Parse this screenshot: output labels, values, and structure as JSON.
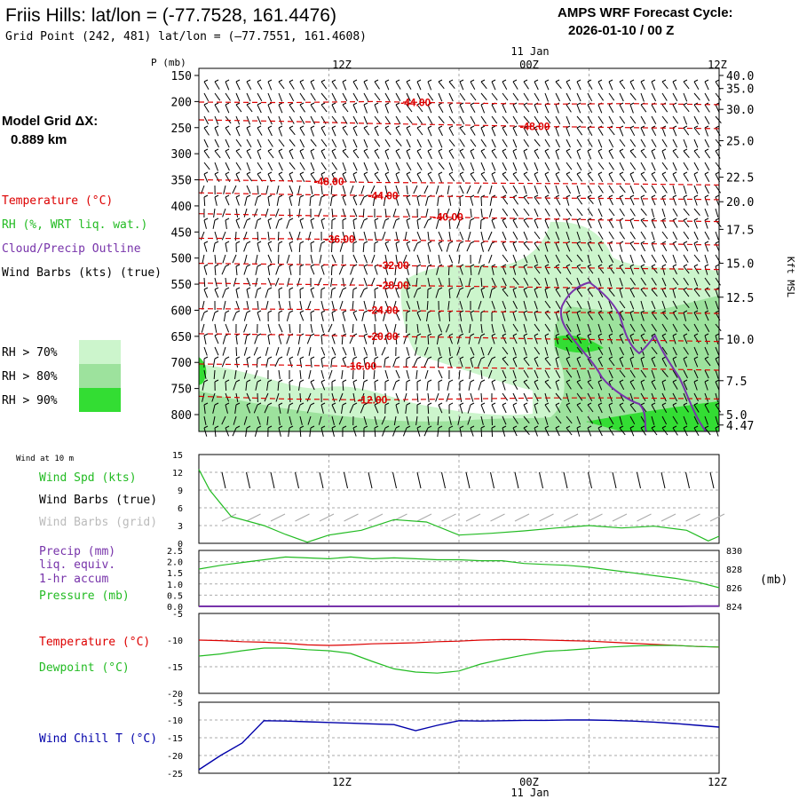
{
  "header": {
    "title": "Friis Hills:  lat/lon = (-77.7528, 161.4476)",
    "subtitle": "Grid Point (242, 481) lat/lon = (–77.7551, 161.4608)",
    "cycle_label": "AMPS WRF Forecast Cycle:",
    "cycle_value": "2026-01-10 / 00  Z",
    "grid_label": "Model Grid ΔX:",
    "grid_value": "0.889 km"
  },
  "time_axis": {
    "top_labels": [
      "12Z",
      "00Z",
      "12Z"
    ],
    "date_label": "11 Jan",
    "bottom_labels": [
      "12Z",
      "00Z",
      "12Z"
    ],
    "bottom_date_label": "11 Jan"
  },
  "colors": {
    "temperature": "#dd0000",
    "rh": "#22bb22",
    "cloud": "#7733aa",
    "wind_chill": "#0000aa",
    "rh70": "#ccf5cc",
    "rh80": "#9de29d",
    "rh90": "#33dd33"
  },
  "legend_top": {
    "temperature": "Temperature (°C)",
    "rh": "RH (%, WRT liq. wat.)",
    "cloud": "Cloud/Precip Outline",
    "wind": "Wind Barbs (kts) (true)",
    "rh70": "RH > 70%",
    "rh80": "RH > 80%",
    "rh90": "RH > 90%"
  },
  "legend_wind": {
    "title": "Wind at 10 m",
    "speed": "Wind Spd (kts)",
    "barbs_true": "Wind Barbs (true)",
    "barbs_grid": "Wind Barbs (grid)"
  },
  "legend_precip": {
    "line1": "Precip (mm)",
    "line2": "liq. equiv.",
    "line3": "1-hr accum",
    "pressure": "Pressure (mb)",
    "unit": "(mb)"
  },
  "legend_temp": {
    "temperature": "Temperature (°C)",
    "dewpoint": "Dewpoint (°C)"
  },
  "legend_chill": {
    "label": "Wind Chill T (°C)"
  },
  "chart_data": [
    {
      "type": "area",
      "name": "cross-section",
      "ylabel": "P (mb)",
      "y2label": "Kft MSL",
      "pressure_ticks": [
        150,
        200,
        250,
        300,
        350,
        400,
        450,
        500,
        550,
        600,
        650,
        700,
        750,
        800
      ],
      "height_labels": [
        {
          "p": 150,
          "label": "40.0"
        },
        {
          "p": 175,
          "label": "35.0"
        },
        {
          "p": 215,
          "label": "30.0"
        },
        {
          "p": 275,
          "label": "25.0"
        },
        {
          "p": 345,
          "label": "22.5"
        },
        {
          "p": 392,
          "label": "20.0"
        },
        {
          "p": 445,
          "label": "17.5"
        },
        {
          "p": 510,
          "label": "15.0"
        },
        {
          "p": 575,
          "label": "12.5"
        },
        {
          "p": 655,
          "label": "10.0"
        },
        {
          "p": 735,
          "label": "7.5"
        },
        {
          "p": 800,
          "label": "5.0"
        },
        {
          "p": 820,
          "label": "4.47"
        }
      ],
      "time_hours": [
        0,
        48
      ],
      "isotherms": [
        {
          "label": "-44.00",
          "p": [
            201,
            202,
            200,
            203,
            205,
            204,
            206
          ],
          "label_t": 20
        },
        {
          "label": "-48.00",
          "p": [
            235,
            238,
            242,
            245,
            248,
            250,
            252
          ],
          "label_t": 31
        },
        {
          "label": "-48.00",
          "p": [
            350,
            352,
            355,
            356,
            357,
            358,
            360
          ],
          "label_t": 12
        },
        {
          "label": "-44.00",
          "p": [
            375,
            378,
            380,
            382,
            385,
            386,
            388
          ],
          "label_t": 17
        },
        {
          "label": "-40.00",
          "p": [
            415,
            418,
            420,
            422,
            425,
            428,
            430
          ],
          "label_t": 23
        },
        {
          "label": "-36.00",
          "p": [
            462,
            463,
            465,
            467,
            470,
            472,
            475
          ],
          "label_t": 13
        },
        {
          "label": "-32.00",
          "p": [
            510,
            512,
            514,
            516,
            518,
            520,
            522
          ],
          "label_t": 18
        },
        {
          "label": "-28.00",
          "p": [
            548,
            550,
            552,
            554,
            556,
            558,
            560
          ],
          "label_t": 18
        },
        {
          "label": "-24.00",
          "p": [
            597,
            598,
            600,
            602,
            604,
            605,
            606
          ],
          "label_t": 17
        },
        {
          "label": "-20.00",
          "p": [
            645,
            647,
            650,
            652,
            655,
            657,
            660
          ],
          "label_t": 17
        },
        {
          "label": "-16.00",
          "p": [
            703,
            705,
            708,
            710,
            712,
            712,
            715
          ],
          "label_t": 15
        },
        {
          "label": "-12.00",
          "p": [
            765,
            770,
            772,
            770,
            768,
            768,
            770
          ],
          "label_t": 16
        }
      ],
      "rh_regions": [
        "RH > 70%",
        "RH > 80%",
        "RH > 90%"
      ]
    },
    {
      "type": "line",
      "name": "wind-10m",
      "ylim": [
        0,
        15
      ],
      "yticks": [
        0,
        3,
        6,
        9,
        12,
        15
      ],
      "x": [
        0,
        1,
        3,
        6,
        8,
        10,
        12,
        15,
        18,
        21,
        24,
        27,
        30,
        33,
        36,
        39,
        42,
        45,
        47,
        48
      ],
      "series": [
        {
          "name": "Wind Spd (kts)",
          "values": [
            12.5,
            9,
            4.5,
            3,
            1.5,
            0.2,
            1.4,
            2.2,
            4,
            3.6,
            1.4,
            1.7,
            2.1,
            2.6,
            3,
            2.6,
            2.9,
            2.2,
            0.4,
            1.2
          ]
        }
      ]
    },
    {
      "type": "line",
      "name": "precip-pressure",
      "ylim_precip": [
        0.0,
        2.5
      ],
      "yticks_precip": [
        "0.0",
        "0.5",
        "1.0",
        "1.5",
        "2.0",
        "2.5"
      ],
      "ylim_pressure": [
        824,
        830
      ],
      "yticks_pressure": [
        824,
        826,
        828,
        830
      ],
      "x": [
        0,
        2,
        4,
        6,
        8,
        10,
        12,
        14,
        16,
        18,
        20,
        22,
        24,
        26,
        28,
        30,
        32,
        34,
        36,
        38,
        40,
        42,
        44,
        46,
        48
      ],
      "series": [
        {
          "name": "Pressure (mb)",
          "values": [
            828.0,
            828.4,
            828.7,
            829.0,
            829.3,
            829.2,
            829.1,
            829.3,
            829.1,
            829.2,
            829.1,
            829.0,
            829.0,
            828.9,
            828.9,
            828.6,
            828.5,
            828.4,
            828.2,
            827.9,
            827.6,
            827.3,
            827.0,
            826.6,
            826.0
          ]
        },
        {
          "name": "Precip (mm)",
          "values": [
            0,
            0,
            0,
            0,
            0,
            0,
            0,
            0,
            0,
            0,
            0,
            0,
            0,
            0,
            0,
            0,
            0,
            0,
            0,
            0,
            0,
            0,
            0,
            0.01,
            0.01
          ]
        }
      ]
    },
    {
      "type": "line",
      "name": "temperature-dewpoint",
      "ylim": [
        -20,
        -5
      ],
      "yticks": [
        -20,
        -15,
        -10,
        -5
      ],
      "x": [
        0,
        2,
        4,
        6,
        8,
        10,
        12,
        14,
        16,
        18,
        20,
        22,
        24,
        26,
        28,
        30,
        32,
        34,
        36,
        38,
        40,
        42,
        44,
        46,
        48
      ],
      "series": [
        {
          "name": "Temperature (°C)",
          "values": [
            -10.0,
            -10.1,
            -10.3,
            -10.4,
            -10.6,
            -10.9,
            -11.0,
            -10.9,
            -10.7,
            -10.6,
            -10.5,
            -10.3,
            -10.2,
            -10.0,
            -9.9,
            -9.9,
            -10.0,
            -10.1,
            -10.2,
            -10.4,
            -10.6,
            -10.8,
            -11.0,
            -11.2,
            -11.3
          ]
        },
        {
          "name": "Dewpoint (°C)",
          "values": [
            -13.0,
            -12.6,
            -12.0,
            -11.5,
            -11.5,
            -11.8,
            -12.0,
            -12.5,
            -14.0,
            -15.4,
            -16.0,
            -16.2,
            -15.8,
            -14.5,
            -13.6,
            -12.8,
            -12.1,
            -11.9,
            -11.6,
            -11.3,
            -11.1,
            -11.0,
            -11.0,
            -11.2,
            -11.3
          ]
        }
      ]
    },
    {
      "type": "line",
      "name": "wind-chill",
      "ylim": [
        -25,
        -5
      ],
      "yticks": [
        -25,
        -20,
        -15,
        -10,
        -5
      ],
      "x": [
        0,
        2,
        4,
        6,
        8,
        10,
        12,
        14,
        16,
        18,
        20,
        22,
        24,
        26,
        28,
        30,
        32,
        34,
        36,
        38,
        40,
        42,
        44,
        46,
        48
      ],
      "series": [
        {
          "name": "Wind Chill T (°C)",
          "values": [
            -24.0,
            -20.0,
            -16.5,
            -10.2,
            -10.3,
            -10.5,
            -10.7,
            -10.9,
            -11.1,
            -11.3,
            -13.0,
            -11.5,
            -10.2,
            -10.3,
            -10.2,
            -10.1,
            -10.1,
            -10.0,
            -10.0,
            -10.1,
            -10.3,
            -10.6,
            -11.0,
            -11.5,
            -12.0
          ]
        }
      ]
    }
  ]
}
